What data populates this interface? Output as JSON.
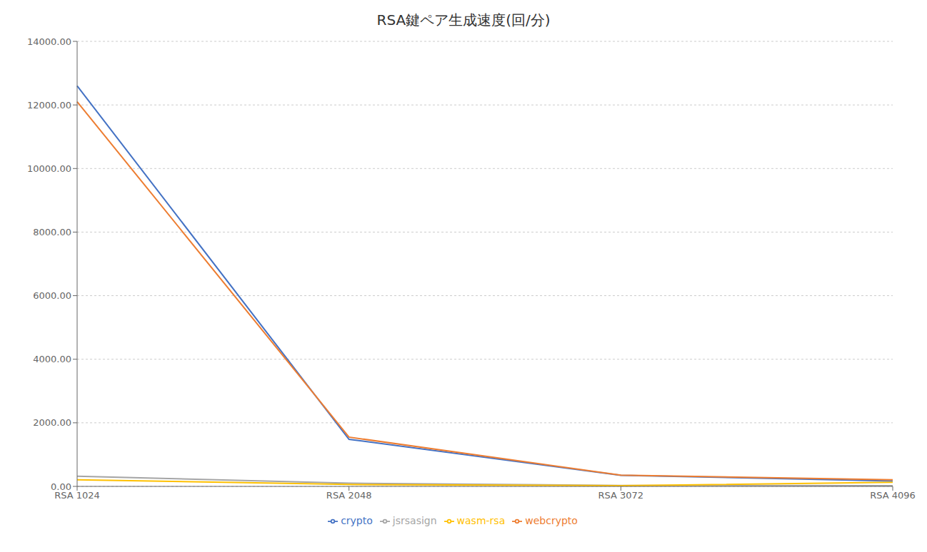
{
  "chart_data": {
    "type": "line",
    "title": "RSA鍵ペア生成速度(回/分)",
    "categories": [
      "RSA 1024",
      "RSA 2048",
      "RSA 3072",
      "RSA 4096"
    ],
    "series": [
      {
        "name": "crypto",
        "color": "#4472C4",
        "values": [
          12600,
          1480,
          350,
          168
        ]
      },
      {
        "name": "webcrypto",
        "color": "#ED7D31",
        "values": [
          12100,
          1550,
          355,
          210
        ]
      },
      {
        "name": "jsrsasign",
        "color": "#A5A5A5",
        "values": [
          320,
          100,
          30,
          20
        ]
      },
      {
        "name": "wasm-rsa",
        "color": "#FFC000",
        "values": [
          210,
          60,
          20,
          130
        ]
      }
    ],
    "ylim": [
      0,
      14000
    ],
    "yticks": [
      {
        "value": 0,
        "label": "0.00"
      },
      {
        "value": 2000,
        "label": "2000.00"
      },
      {
        "value": 4000,
        "label": "4000.00"
      },
      {
        "value": 6000,
        "label": "6000.00"
      },
      {
        "value": 8000,
        "label": "8000.00"
      },
      {
        "value": 10000,
        "label": "10000.00"
      },
      {
        "value": 12000,
        "label": "12000.00"
      },
      {
        "value": 14000,
        "label": "14000.00"
      }
    ],
    "grid": true,
    "legend": "bottom"
  }
}
